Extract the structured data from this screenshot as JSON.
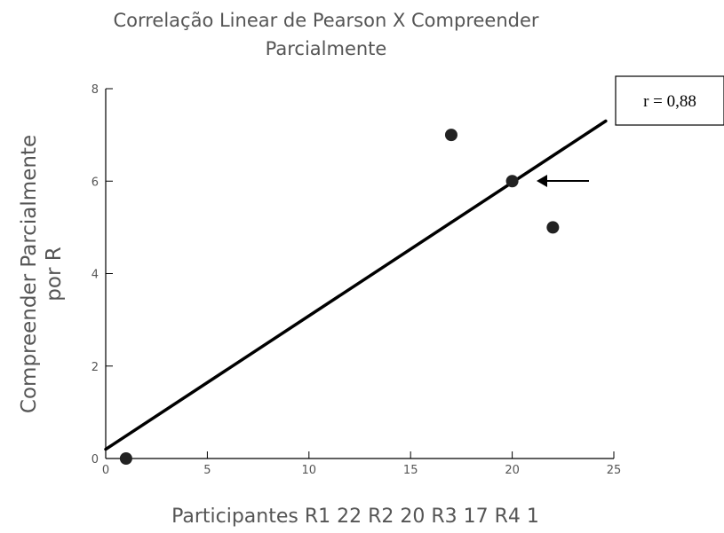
{
  "chart_data": {
    "type": "scatter",
    "title_lines": [
      "Correlação Linear de Pearson X Compreender",
      "Parcialmente"
    ],
    "xlabel": "Participantes R1 22 R2 20 R3 17 R4 1",
    "ylabel_lines": [
      "Compreender Parcialmente",
      "por R"
    ],
    "xlim": [
      0,
      25
    ],
    "ylim": [
      0,
      8
    ],
    "xticks": [
      0,
      5,
      10,
      15,
      20,
      25
    ],
    "yticks": [
      0,
      2,
      4,
      6,
      8
    ],
    "grid": false,
    "points": [
      {
        "x": 22,
        "y": 5
      },
      {
        "x": 20,
        "y": 6
      },
      {
        "x": 17,
        "y": 7
      },
      {
        "x": 1,
        "y": 0
      }
    ],
    "trendline": {
      "x": [
        0,
        24.6
      ],
      "y": [
        0.2,
        7.3
      ]
    },
    "annotation": {
      "text": "r = 0,88",
      "arrow_target": {
        "x": 21,
        "y": 6
      }
    }
  }
}
